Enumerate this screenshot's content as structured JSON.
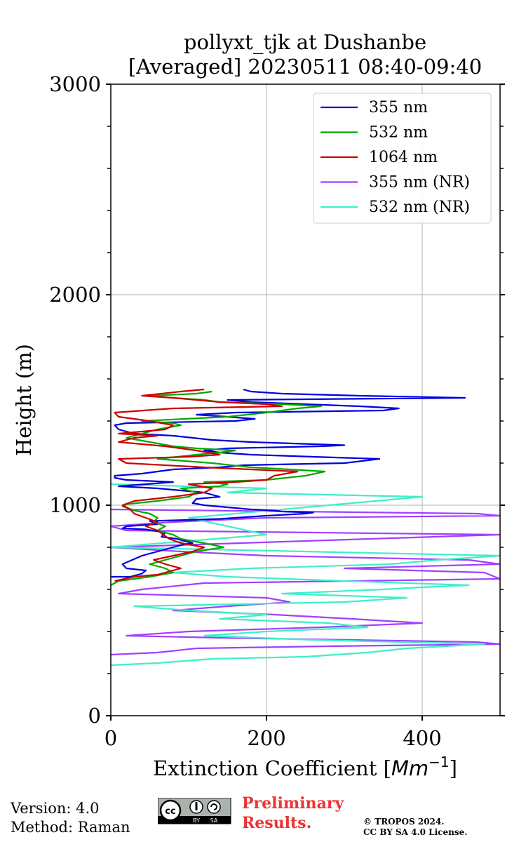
{
  "chart_data": {
    "type": "line",
    "title": "pollyxt_tjk at Dushanbe",
    "subtitle": "[Averaged] 20230511 08:40-09:40",
    "xlabel": "Extinction Coefficient [",
    "xlabel_unit": "Mm",
    "xlabel_exp": "−1",
    "xlabel_close": "]",
    "ylabel": "Height (m)",
    "xlim": [
      0,
      500
    ],
    "ylim": [
      0,
      3000
    ],
    "xticks": [
      0,
      200,
      400
    ],
    "yticks": [
      0,
      1000,
      2000,
      3000
    ],
    "xtick_labels": [
      "0",
      "200",
      "400"
    ],
    "ytick_labels": [
      "0",
      "1000",
      "2000",
      "3000"
    ],
    "grid": true,
    "legend_position": "top-right",
    "series": [
      {
        "name": "355 nm",
        "color": "#0000dd",
        "points": [
          [
            0,
            660
          ],
          [
            25,
            660
          ],
          [
            40,
            675
          ],
          [
            45,
            690
          ],
          [
            20,
            700
          ],
          [
            15,
            720
          ],
          [
            40,
            760
          ],
          [
            60,
            780
          ],
          [
            80,
            800
          ],
          [
            95,
            815
          ],
          [
            105,
            820
          ],
          [
            95,
            830
          ],
          [
            85,
            840
          ],
          [
            65,
            850
          ],
          [
            70,
            870
          ],
          [
            45,
            885
          ],
          [
            15,
            890
          ],
          [
            20,
            900
          ],
          [
            60,
            910
          ],
          [
            50,
            925
          ],
          [
            100,
            930
          ],
          [
            140,
            935
          ],
          [
            200,
            950
          ],
          [
            250,
            960
          ],
          [
            260,
            965
          ],
          [
            220,
            970
          ],
          [
            210,
            975
          ],
          [
            180,
            980
          ],
          [
            150,
            990
          ],
          [
            120,
            1000
          ],
          [
            105,
            1010
          ],
          [
            110,
            1030
          ],
          [
            140,
            1040
          ],
          [
            120,
            1060
          ],
          [
            90,
            1070
          ],
          [
            60,
            1080
          ],
          [
            10,
            1090
          ],
          [
            45,
            1100
          ],
          [
            80,
            1110
          ],
          [
            20,
            1120
          ],
          [
            5,
            1130
          ],
          [
            5,
            1140
          ],
          [
            40,
            1150
          ],
          [
            80,
            1170
          ],
          [
            140,
            1180
          ],
          [
            170,
            1190
          ],
          [
            300,
            1200
          ],
          [
            345,
            1220
          ],
          [
            260,
            1230
          ],
          [
            180,
            1240
          ],
          [
            140,
            1250
          ],
          [
            120,
            1260
          ],
          [
            150,
            1270
          ],
          [
            270,
            1280
          ],
          [
            300,
            1285
          ],
          [
            260,
            1290
          ],
          [
            220,
            1295
          ],
          [
            180,
            1300
          ],
          [
            130,
            1310
          ],
          [
            80,
            1330
          ],
          [
            30,
            1340
          ],
          [
            10,
            1360
          ],
          [
            5,
            1380
          ],
          [
            20,
            1390
          ],
          [
            160,
            1400
          ],
          [
            185,
            1410
          ],
          [
            150,
            1420
          ],
          [
            110,
            1430
          ],
          [
            160,
            1440
          ],
          [
            350,
            1450
          ],
          [
            370,
            1460
          ],
          [
            320,
            1470
          ],
          [
            180,
            1490
          ],
          [
            150,
            1500
          ],
          [
            300,
            1505
          ],
          [
            455,
            1510
          ],
          [
            320,
            1520
          ],
          [
            220,
            1530
          ],
          [
            180,
            1540
          ],
          [
            170,
            1550
          ]
        ]
      },
      {
        "name": "532 nm",
        "color": "#00aa00",
        "points": [
          [
            0,
            620
          ],
          [
            10,
            640
          ],
          [
            50,
            660
          ],
          [
            80,
            680
          ],
          [
            70,
            700
          ],
          [
            50,
            720
          ],
          [
            70,
            740
          ],
          [
            90,
            760
          ],
          [
            110,
            780
          ],
          [
            145,
            800
          ],
          [
            120,
            820
          ],
          [
            90,
            840
          ],
          [
            80,
            860
          ],
          [
            60,
            880
          ],
          [
            70,
            900
          ],
          [
            55,
            920
          ],
          [
            60,
            940
          ],
          [
            50,
            960
          ],
          [
            30,
            975
          ],
          [
            15,
            995
          ],
          [
            20,
            1005
          ],
          [
            60,
            1020
          ],
          [
            100,
            1040
          ],
          [
            110,
            1060
          ],
          [
            90,
            1080
          ],
          [
            140,
            1090
          ],
          [
            150,
            1100
          ],
          [
            120,
            1110
          ],
          [
            200,
            1120
          ],
          [
            250,
            1140
          ],
          [
            275,
            1160
          ],
          [
            230,
            1170
          ],
          [
            180,
            1180
          ],
          [
            130,
            1200
          ],
          [
            60,
            1220
          ],
          [
            110,
            1240
          ],
          [
            140,
            1250
          ],
          [
            160,
            1260
          ],
          [
            110,
            1270
          ],
          [
            80,
            1280
          ],
          [
            50,
            1300
          ],
          [
            20,
            1320
          ],
          [
            40,
            1340
          ],
          [
            60,
            1360
          ],
          [
            90,
            1380
          ],
          [
            80,
            1390
          ],
          [
            40,
            1400
          ],
          [
            150,
            1420
          ],
          [
            200,
            1440
          ],
          [
            240,
            1460
          ],
          [
            270,
            1470
          ],
          [
            220,
            1480
          ],
          [
            140,
            1490
          ],
          [
            120,
            1500
          ],
          [
            80,
            1510
          ],
          [
            50,
            1520
          ],
          [
            110,
            1530
          ],
          [
            130,
            1540
          ]
        ]
      },
      {
        "name": "1064 nm",
        "color": "#cc0000",
        "points": [
          [
            5,
            640
          ],
          [
            30,
            660
          ],
          [
            60,
            670
          ],
          [
            90,
            700
          ],
          [
            70,
            720
          ],
          [
            55,
            740
          ],
          [
            80,
            760
          ],
          [
            105,
            780
          ],
          [
            120,
            800
          ],
          [
            90,
            820
          ],
          [
            75,
            840
          ],
          [
            60,
            880
          ],
          [
            45,
            900
          ],
          [
            60,
            920
          ],
          [
            45,
            940
          ],
          [
            30,
            960
          ],
          [
            25,
            980
          ],
          [
            15,
            1000
          ],
          [
            30,
            1020
          ],
          [
            80,
            1040
          ],
          [
            120,
            1060
          ],
          [
            130,
            1080
          ],
          [
            100,
            1100
          ],
          [
            160,
            1110
          ],
          [
            200,
            1120
          ],
          [
            210,
            1140
          ],
          [
            240,
            1160
          ],
          [
            180,
            1170
          ],
          [
            120,
            1180
          ],
          [
            20,
            1200
          ],
          [
            10,
            1220
          ],
          [
            100,
            1230
          ],
          [
            140,
            1240
          ],
          [
            110,
            1260
          ],
          [
            70,
            1280
          ],
          [
            10,
            1300
          ],
          [
            30,
            1320
          ],
          [
            60,
            1330
          ],
          [
            10,
            1340
          ],
          [
            70,
            1360
          ],
          [
            80,
            1380
          ],
          [
            50,
            1400
          ],
          [
            10,
            1420
          ],
          [
            5,
            1440
          ],
          [
            80,
            1460
          ],
          [
            220,
            1470
          ],
          [
            200,
            1480
          ],
          [
            140,
            1490
          ],
          [
            80,
            1510
          ],
          [
            40,
            1520
          ],
          [
            90,
            1540
          ],
          [
            120,
            1550
          ]
        ]
      },
      {
        "name": "355 nm (NR)",
        "color": "#a040ff",
        "points": [
          [
            0,
            290
          ],
          [
            60,
            300
          ],
          [
            110,
            320
          ],
          [
            280,
            330
          ],
          [
            500,
            340
          ],
          [
            470,
            350
          ],
          [
            310,
            360
          ],
          [
            140,
            370
          ],
          [
            20,
            380
          ],
          [
            100,
            400
          ],
          [
            270,
            420
          ],
          [
            400,
            440
          ],
          [
            310,
            460
          ],
          [
            210,
            480
          ],
          [
            80,
            500
          ],
          [
            150,
            520
          ],
          [
            230,
            540
          ],
          [
            200,
            560
          ],
          [
            10,
            580
          ],
          [
            40,
            600
          ],
          [
            120,
            630
          ],
          [
            500,
            650
          ],
          [
            480,
            680
          ],
          [
            300,
            700
          ],
          [
            500,
            720
          ],
          [
            460,
            740
          ],
          [
            200,
            760
          ],
          [
            90,
            780
          ],
          [
            0,
            800
          ],
          [
            500,
            860
          ],
          [
            20,
            880
          ],
          [
            0,
            900
          ],
          [
            80,
            920
          ],
          [
            200,
            940
          ],
          [
            500,
            950
          ],
          [
            470,
            960
          ],
          [
            120,
            975
          ],
          [
            0,
            980
          ]
        ]
      },
      {
        "name": "532 nm (NR)",
        "color": "#40eec8",
        "points": [
          [
            0,
            240
          ],
          [
            60,
            250
          ],
          [
            130,
            270
          ],
          [
            250,
            280
          ],
          [
            330,
            300
          ],
          [
            380,
            320
          ],
          [
            480,
            340
          ],
          [
            260,
            360
          ],
          [
            120,
            380
          ],
          [
            200,
            400
          ],
          [
            330,
            420
          ],
          [
            280,
            440
          ],
          [
            140,
            460
          ],
          [
            200,
            480
          ],
          [
            100,
            500
          ],
          [
            30,
            520
          ],
          [
            300,
            540
          ],
          [
            380,
            560
          ],
          [
            220,
            580
          ],
          [
            350,
            600
          ],
          [
            400,
            610
          ],
          [
            460,
            620
          ],
          [
            300,
            640
          ],
          [
            150,
            660
          ],
          [
            80,
            680
          ],
          [
            180,
            700
          ],
          [
            360,
            720
          ],
          [
            420,
            740
          ],
          [
            500,
            760
          ],
          [
            250,
            780
          ],
          [
            0,
            800
          ],
          [
            200,
            860
          ],
          [
            100,
            940
          ],
          [
            400,
            1040
          ],
          [
            150,
            1060
          ],
          [
            200,
            1080
          ],
          [
            0,
            1100
          ]
        ]
      }
    ],
    "legend": [
      "355 nm",
      "532 nm",
      "1064 nm",
      "355 nm (NR)",
      "532 nm (NR)"
    ]
  },
  "footer": {
    "version": "Version: 4.0",
    "method": "Method: Raman",
    "cc_label_by": "BY",
    "cc_label_sa": "SA",
    "cc_text": "cc",
    "preliminary_line1": "Preliminary",
    "preliminary_line2": "Results.",
    "copyright_line1": "© TROPOS 2024.",
    "copyright_line2": "CC BY SA 4.0 License."
  },
  "colors": {
    "preliminary": "#ee3333",
    "grid": "#b0b0b0"
  }
}
